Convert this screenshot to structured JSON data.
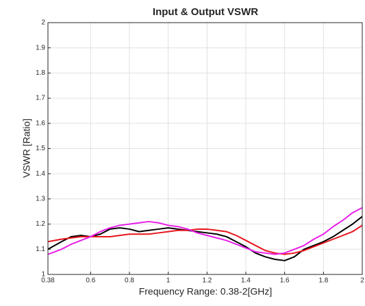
{
  "chart_data": {
    "type": "line",
    "title": "Input & Output VSWR",
    "x_label": "Frequency Range: 0.38-2[GHz]",
    "y_label": "VSWR [Ratio]",
    "x": [
      0.38,
      0.45,
      0.5,
      0.55,
      0.6,
      0.65,
      0.7,
      0.75,
      0.8,
      0.85,
      0.9,
      0.95,
      1.0,
      1.05,
      1.1,
      1.15,
      1.2,
      1.25,
      1.3,
      1.35,
      1.4,
      1.45,
      1.5,
      1.55,
      1.6,
      1.65,
      1.7,
      1.75,
      1.8,
      1.85,
      1.9,
      1.95,
      2.0
    ],
    "series": [
      {
        "color": "#000000",
        "values": [
          1.1,
          1.13,
          1.15,
          1.155,
          1.15,
          1.16,
          1.18,
          1.185,
          1.18,
          1.17,
          1.175,
          1.18,
          1.185,
          1.18,
          1.175,
          1.17,
          1.165,
          1.16,
          1.15,
          1.13,
          1.11,
          1.085,
          1.07,
          1.06,
          1.055,
          1.07,
          1.1,
          1.115,
          1.13,
          1.15,
          1.175,
          1.2,
          1.23
        ]
      },
      {
        "color": "#e8141c",
        "values": [
          1.13,
          1.14,
          1.145,
          1.15,
          1.15,
          1.15,
          1.15,
          1.155,
          1.16,
          1.16,
          1.16,
          1.165,
          1.17,
          1.175,
          1.175,
          1.18,
          1.18,
          1.175,
          1.17,
          1.155,
          1.135,
          1.115,
          1.095,
          1.085,
          1.08,
          1.085,
          1.095,
          1.11,
          1.125,
          1.14,
          1.155,
          1.17,
          1.195
        ]
      },
      {
        "color": "#e81ee8",
        "values": [
          1.08,
          1.1,
          1.12,
          1.135,
          1.15,
          1.17,
          1.185,
          1.195,
          1.2,
          1.205,
          1.21,
          1.205,
          1.195,
          1.19,
          1.18,
          1.165,
          1.155,
          1.145,
          1.135,
          1.12,
          1.105,
          1.09,
          1.085,
          1.08,
          1.085,
          1.1,
          1.115,
          1.14,
          1.16,
          1.19,
          1.215,
          1.245,
          1.265
        ]
      }
    ],
    "xlim": [
      0.38,
      2
    ],
    "ylim": [
      1,
      2
    ],
    "xticks": [
      0.38,
      0.6,
      0.8,
      1,
      1.2,
      1.4,
      1.6,
      1.8,
      2
    ],
    "yticks": [
      1,
      1.1,
      1.2,
      1.3,
      1.4,
      1.5,
      1.6,
      1.7,
      1.8,
      1.9,
      2
    ],
    "grid": true
  }
}
